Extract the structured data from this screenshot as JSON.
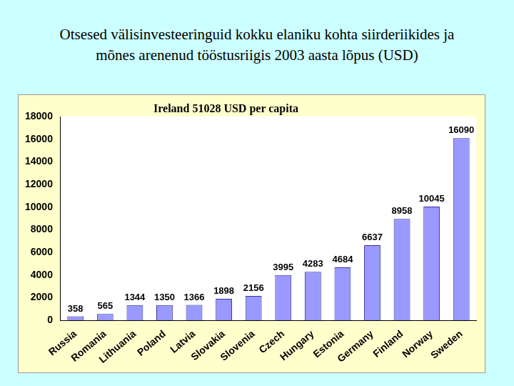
{
  "chart_data": {
    "type": "bar",
    "title": "Otsesed välisinvesteeringuid kokku elaniku kohta siirderiikides  ja mõnes arenenud tööstusriigis 2003 aasta lõpus (USD)",
    "annotations": [
      "Ireland 51028 USD per capita"
    ],
    "categories": [
      "Russia",
      "Romania",
      "Lithuania",
      "Poland",
      "Latvia",
      "Slovakia",
      "Slovenia",
      "Czech",
      "Hungary",
      "Estonia",
      "Germany",
      "Finland",
      "Norway",
      "Sweden"
    ],
    "values": [
      358,
      565,
      1344,
      1350,
      1366,
      1898,
      2156,
      3995,
      4283,
      4684,
      6637,
      8958,
      10045,
      16090
    ],
    "color": "#9999ff",
    "ylim": [
      0,
      18000
    ],
    "yticks": [
      0,
      2000,
      4000,
      6000,
      8000,
      10000,
      12000,
      14000,
      16000,
      18000
    ],
    "grid": false,
    "data_labels": true
  }
}
